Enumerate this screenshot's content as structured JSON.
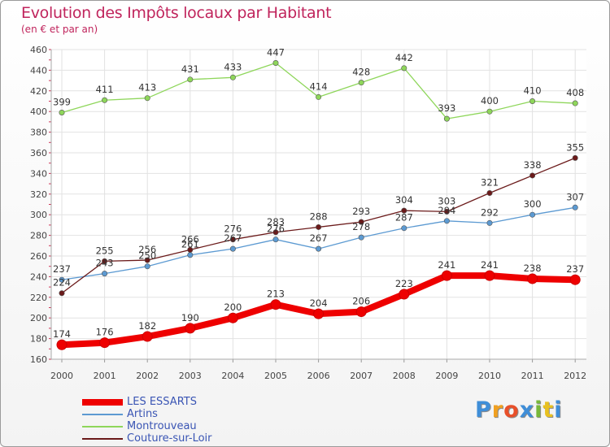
{
  "header": {
    "title": "Evolution des Impôts locaux par Habitant",
    "subtitle": "(en € et par an)"
  },
  "logo": {
    "letters": [
      "P",
      "r",
      "o",
      "x",
      "i",
      "t",
      "i"
    ],
    "colors": [
      "#3f8ed8",
      "#f0a020",
      "#e8502a",
      "#3f8ed8",
      "#78b83a",
      "#e8c020",
      "#3f8ed8"
    ]
  },
  "chart_data": {
    "type": "line",
    "x": [
      "2000",
      "2001",
      "2002",
      "2003",
      "2004",
      "2005",
      "2006",
      "2007",
      "2008",
      "2009",
      "2010",
      "2011",
      "2012"
    ],
    "ylim": [
      160,
      460
    ],
    "yticks": [
      "160",
      "180",
      "200",
      "220",
      "240",
      "260",
      "280",
      "300",
      "320",
      "340",
      "360",
      "380",
      "400",
      "420",
      "440",
      "460"
    ],
    "grid": true,
    "legend_position": "bottom-left",
    "series": [
      {
        "name": "LES ESSARTS",
        "color": "#ee0000",
        "values": [
          174,
          176,
          182,
          190,
          200,
          213,
          204,
          206,
          223,
          241,
          241,
          238,
          237
        ]
      },
      {
        "name": "Artins",
        "color": "#5c9ad2",
        "values": [
          237,
          243,
          250,
          261,
          267,
          276,
          267,
          278,
          287,
          294,
          292,
          300,
          307
        ]
      },
      {
        "name": "Montrouveau",
        "color": "#8ed65a",
        "values": [
          399,
          411,
          413,
          431,
          433,
          447,
          414,
          428,
          442,
          393,
          400,
          410,
          408
        ]
      },
      {
        "name": "Couture-sur-Loir",
        "color": "#6b1a1a",
        "values": [
          224,
          255,
          256,
          266,
          276,
          283,
          288,
          293,
          304,
          303,
          321,
          338,
          355
        ]
      }
    ]
  }
}
